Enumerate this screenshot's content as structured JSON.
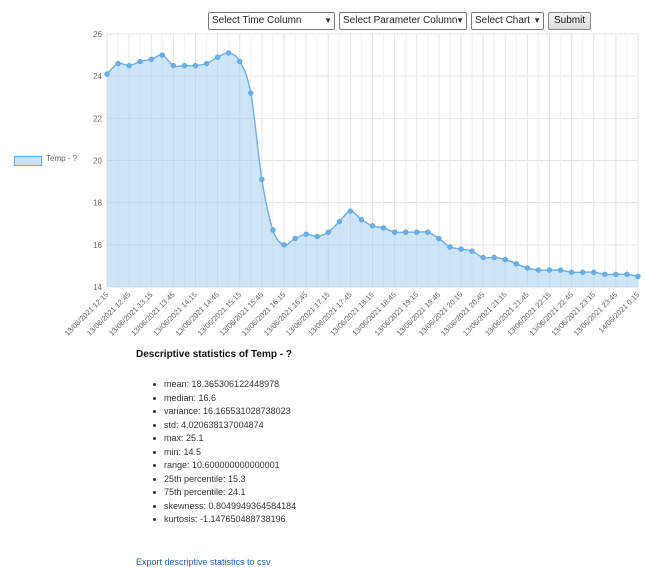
{
  "controls": {
    "time_select": "Select Time Column",
    "param_select": "Select Parameter Column",
    "chart_select": "Select Chart",
    "submit_label": "Submit"
  },
  "legend": {
    "label": "Temp - ?"
  },
  "chart_data": {
    "type": "area",
    "series": [
      {
        "name": "Temp - ?",
        "values": [
          24.1,
          24.6,
          24.5,
          24.7,
          24.8,
          25.0,
          24.5,
          24.5,
          24.5,
          24.6,
          24.9,
          25.1,
          24.7,
          23.2,
          19.1,
          16.7,
          16.0,
          16.3,
          16.5,
          16.4,
          16.6,
          17.1,
          17.6,
          17.2,
          16.9,
          16.8,
          16.6,
          16.6,
          16.6,
          16.6,
          16.3,
          15.9,
          15.8,
          15.7,
          15.4,
          15.4,
          15.3,
          15.1,
          14.9,
          14.8,
          14.8,
          14.8,
          14.7,
          14.7,
          14.7,
          14.6,
          14.6,
          14.6,
          14.5
        ],
        "color": "#6ab0e6",
        "fill": "rgba(166,207,241,0.55)"
      }
    ],
    "x_tick_labels": [
      "13/06/2021 12:15",
      "13/06/2021 12:45",
      "13/06/2021 13:15",
      "13/06/2021 13:45",
      "13/06/2021 14:15",
      "13/06/2021 14:45",
      "13/06/2021 15:15",
      "13/06/2021 15:45",
      "13/06/2021 16:15",
      "13/06/2021 16:45",
      "13/06/2021 17:15",
      "13/06/2021 17:45",
      "13/06/2021 18:15",
      "13/06/2021 18:45",
      "13/06/2021 19:15",
      "13/06/2021 19:45",
      "13/06/2021 20:15",
      "13/06/2021 20:45",
      "13/06/2021 21:15",
      "13/06/2021 21:45",
      "13/06/2021 22:15",
      "13/06/2021 22:45",
      "13/06/2021 23:15",
      "13/06/2021 23:45",
      "14/06/2021 0:15"
    ],
    "y_ticks": [
      "14",
      "16",
      "18",
      "20",
      "22",
      "24",
      "26"
    ],
    "ylim": [
      14,
      26
    ],
    "grid": true,
    "legend_position": "left"
  },
  "stats": {
    "heading": "Descriptive statistics of Temp - ?",
    "items": [
      "mean: 18.365306122448978",
      "median: 16.6",
      "variance: 16.165531028738023",
      "std: 4.020638137004874",
      "max: 25.1",
      "min: 14.5",
      "range: 10.600000000000001",
      "25th percentile: 15.3",
      "75th percentile: 24.1",
      "skewness: 0.8049949364584184",
      "kurtosis: -1.147650488738196"
    ]
  },
  "export_link": "Export descriptive statistics to csv"
}
